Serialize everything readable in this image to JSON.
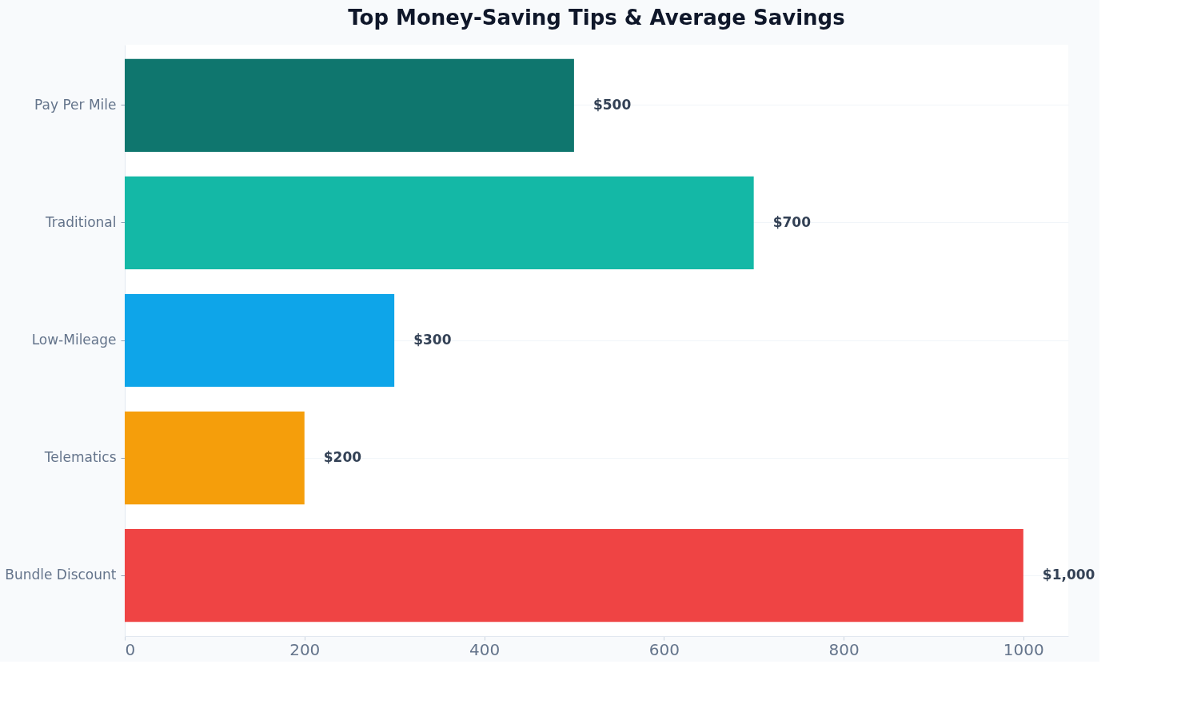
{
  "chart_data": {
    "type": "bar",
    "orientation": "horizontal",
    "title": "Top Money-Saving Tips & Average Savings",
    "categories": [
      "Pay Per Mile",
      "Traditional",
      "Low-Mileage",
      "Telematics",
      "Bundle Discount"
    ],
    "values": [
      500,
      700,
      300,
      200,
      1000
    ],
    "colors": [
      "#0f766e",
      "#14b8a6",
      "#0ea5e9",
      "#f59e0b",
      "#ef4444"
    ],
    "value_labels": [
      "$500",
      "$700",
      "$300",
      "$200",
      "$1,000"
    ],
    "xlim": [
      0,
      1050
    ],
    "xticks": [
      0,
      200,
      400,
      600,
      800,
      1000
    ],
    "grid": "y",
    "legend": false
  }
}
